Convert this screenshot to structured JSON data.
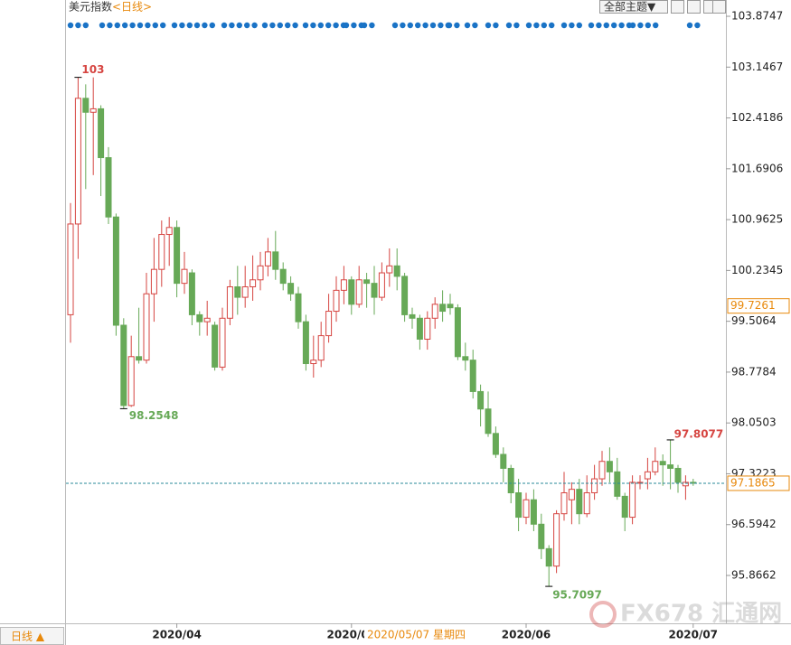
{
  "chart_data": {
    "type": "candlestick",
    "title": "美元指数",
    "subtitle": "<日线>",
    "theme_button": "全部主题▼",
    "period_button": "日线 ▲",
    "watermark": "FX678 汇通网",
    "up_color": "#d64541",
    "down_color": "#67a957",
    "ylim": [
      95.1805,
      104.1079
    ],
    "yticks": [
      95.8662,
      96.5942,
      97.3223,
      98.0503,
      98.7784,
      99.5064,
      100.2345,
      100.9625,
      101.6906,
      102.4186,
      103.1467,
      103.8747
    ],
    "categories": [
      null,
      null,
      null,
      null,
      null,
      null,
      null,
      null,
      null,
      null,
      null,
      null,
      null,
      null,
      "2020/04",
      null,
      null,
      null,
      null,
      null,
      null,
      null,
      null,
      null,
      null,
      null,
      null,
      null,
      null,
      null,
      null,
      null,
      null,
      null,
      null,
      null,
      null,
      "2020/05",
      null,
      null,
      null,
      null,
      null,
      null,
      null,
      null,
      null,
      null,
      null,
      null,
      null,
      null,
      null,
      null,
      null,
      null,
      null,
      null,
      null,
      null,
      "2020/06",
      null,
      null,
      null,
      null,
      null,
      null,
      null,
      null,
      null,
      null,
      null,
      null,
      null,
      null,
      null,
      null,
      null,
      null,
      null,
      null,
      null,
      "2020/07"
    ],
    "open": [
      99.6,
      100.9,
      102.7,
      102.5,
      102.55,
      101.85,
      101.0,
      99.45,
      98.3,
      99.0,
      98.95,
      99.9,
      100.25,
      100.75,
      100.85,
      100.05,
      100.2,
      99.6,
      99.5,
      99.45,
      98.85,
      99.55,
      100.0,
      99.85,
      100.0,
      100.1,
      100.3,
      100.5,
      100.25,
      100.05,
      99.9,
      99.5,
      98.9,
      98.95,
      99.3,
      99.65,
      99.95,
      100.1,
      99.75,
      100.1,
      100.05,
      99.85,
      100.2,
      100.3,
      100.15,
      99.6,
      99.55,
      99.25,
      99.55,
      99.75,
      99.75,
      99.7,
      99.0,
      98.95,
      98.5,
      98.25,
      97.9,
      97.6,
      97.4,
      97.05,
      96.7,
      96.95,
      96.6,
      96.25,
      96.0,
      96.75,
      96.95,
      97.1,
      96.75,
      97.05,
      97.25,
      97.5,
      97.35,
      97.0,
      96.7,
      97.2,
      97.25,
      97.35,
      97.5,
      97.45,
      97.4,
      97.15,
      97.2
    ],
    "high": [
      101.2,
      103.0,
      102.9,
      102.9999,
      102.6,
      102.0,
      101.05,
      99.55,
      99.3,
      99.7,
      100.2,
      100.7,
      100.95,
      101.0,
      100.95,
      100.5,
      100.25,
      99.65,
      99.8,
      99.5,
      99.7,
      100.1,
      100.3,
      100.3,
      100.45,
      100.5,
      100.7,
      100.8,
      100.35,
      100.15,
      100.0,
      99.6,
      99.3,
      99.5,
      99.9,
      100.15,
      100.3,
      100.15,
      100.3,
      100.2,
      100.3,
      100.35,
      100.55,
      100.55,
      100.2,
      99.7,
      99.6,
      99.65,
      99.85,
      99.95,
      99.9,
      99.75,
      99.2,
      99.1,
      98.6,
      98.5,
      98.0,
      97.7,
      97.45,
      97.25,
      97.05,
      97.1,
      96.75,
      96.3,
      96.8,
      97.35,
      97.2,
      97.25,
      97.3,
      97.45,
      97.65,
      97.7,
      97.55,
      97.05,
      97.3,
      97.3,
      97.55,
      97.7,
      97.6,
      97.8077,
      97.45,
      97.3,
      97.25
    ],
    "low": [
      99.2,
      100.4,
      101.4,
      101.6,
      101.3,
      100.9,
      99.3,
      98.2548,
      98.28,
      98.9,
      98.9,
      99.5,
      100.0,
      100.3,
      99.85,
      99.9,
      99.45,
      99.3,
      99.3,
      98.8,
      98.8,
      99.45,
      99.6,
      99.7,
      99.8,
      99.95,
      100.15,
      100.1,
      99.95,
      99.8,
      99.4,
      98.8,
      98.7,
      98.85,
      99.2,
      99.5,
      99.75,
      99.6,
      99.7,
      99.7,
      99.6,
      99.8,
      100.0,
      99.95,
      99.5,
      99.4,
      99.1,
      99.1,
      99.4,
      99.5,
      99.6,
      98.95,
      98.8,
      98.4,
      98.0,
      97.85,
      97.55,
      97.2,
      96.9,
      96.5,
      96.6,
      96.5,
      96.1,
      95.7097,
      95.9,
      96.65,
      96.6,
      96.6,
      96.7,
      96.95,
      97.15,
      97.2,
      96.95,
      96.5,
      96.6,
      97.1,
      97.1,
      97.3,
      97.15,
      97.1,
      97.05,
      96.95,
      97.15
    ],
    "close": [
      100.9,
      102.7,
      102.5,
      102.55,
      101.85,
      101.0,
      99.45,
      98.3,
      99.0,
      98.95,
      99.9,
      100.25,
      100.75,
      100.85,
      100.05,
      100.25,
      99.6,
      99.5,
      99.55,
      98.85,
      99.55,
      100.0,
      99.85,
      100.0,
      100.1,
      100.3,
      100.5,
      100.25,
      100.05,
      99.9,
      99.5,
      98.9,
      98.95,
      99.3,
      99.65,
      99.95,
      100.1,
      99.75,
      100.1,
      100.05,
      99.85,
      100.2,
      100.3,
      100.15,
      99.6,
      99.55,
      99.25,
      99.55,
      99.75,
      99.65,
      99.7,
      99.0,
      98.95,
      98.5,
      98.25,
      97.9,
      97.6,
      97.4,
      97.05,
      96.7,
      96.95,
      96.6,
      96.25,
      96.0,
      96.75,
      97.05,
      97.1,
      96.75,
      97.05,
      97.25,
      97.5,
      97.35,
      97.0,
      96.7,
      97.2,
      97.2,
      97.35,
      97.5,
      97.45,
      97.4,
      97.2,
      97.2,
      97.19
    ],
    "last_price": 97.1865,
    "cursor_value": 99.7261,
    "cursor_date": "2020/05/07 星期四"
  }
}
